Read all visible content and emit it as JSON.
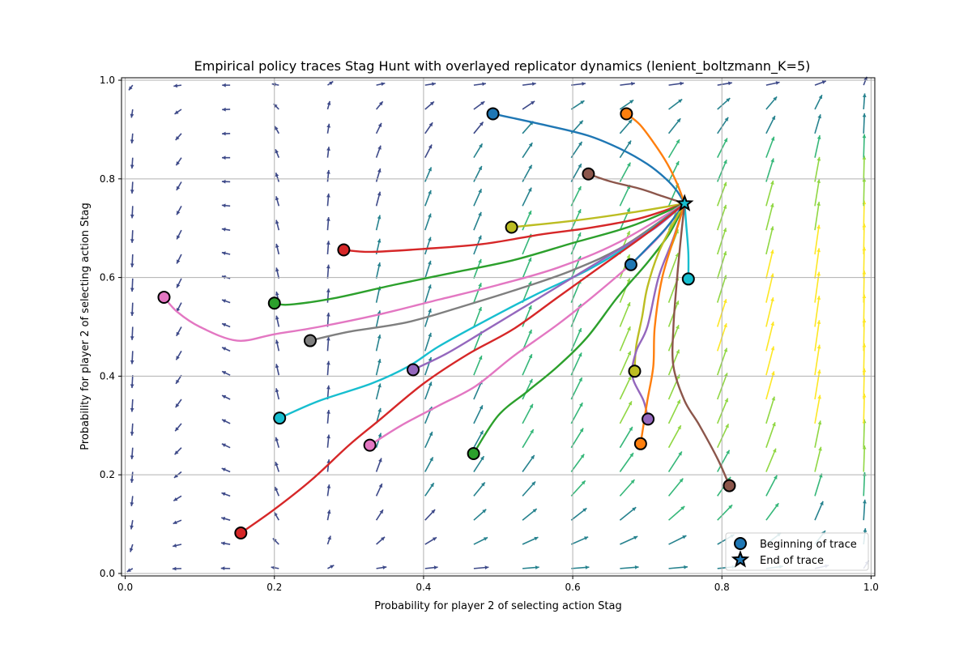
{
  "chart_data": {
    "type": "line",
    "title": "Empirical policy traces Stag Hunt with overlayed replicator dynamics (lenient_boltzmann_K=5)",
    "xlabel": "Probability for player 2 of selecting action Stag",
    "ylabel": "Probability for player 2 of selecting action Stag",
    "xlim": [
      -0.005,
      1.005
    ],
    "ylim": [
      -0.005,
      1.005
    ],
    "xticks": [
      "0.0",
      "0.2",
      "0.4",
      "0.6",
      "0.8",
      "1.0"
    ],
    "yticks": [
      "0.0",
      "0.2",
      "0.4",
      "0.6",
      "0.8",
      "1.0"
    ],
    "grid": true,
    "legend": {
      "placement": "lower-right",
      "entries": [
        {
          "label": "Beginning of trace",
          "marker": "circle"
        },
        {
          "label": "End of trace",
          "marker": "star"
        }
      ]
    },
    "end_point": [
      0.75,
      0.75
    ],
    "field_colors": [
      "#3e4a89",
      "#26828e",
      "#35b779",
      "#90d743",
      "#fde725"
    ],
    "traces": [
      {
        "color": "#1f77b4",
        "points": [
          [
            0.493,
            0.932
          ],
          [
            0.56,
            0.91
          ],
          [
            0.62,
            0.888
          ],
          [
            0.665,
            0.86
          ],
          [
            0.7,
            0.83
          ],
          [
            0.725,
            0.8
          ],
          [
            0.74,
            0.775
          ],
          [
            0.75,
            0.75
          ]
        ]
      },
      {
        "color": "#ff7f0e",
        "points": [
          [
            0.672,
            0.932
          ],
          [
            0.69,
            0.91
          ],
          [
            0.71,
            0.87
          ],
          [
            0.727,
            0.83
          ],
          [
            0.74,
            0.79
          ],
          [
            0.75,
            0.75
          ]
        ]
      },
      {
        "color": "#8c564b",
        "points": [
          [
            0.621,
            0.81
          ],
          [
            0.65,
            0.795
          ],
          [
            0.69,
            0.78
          ],
          [
            0.72,
            0.765
          ],
          [
            0.75,
            0.75
          ]
        ]
      },
      {
        "color": "#bcbd22",
        "points": [
          [
            0.518,
            0.702
          ],
          [
            0.6,
            0.715
          ],
          [
            0.68,
            0.732
          ],
          [
            0.75,
            0.75
          ]
        ]
      },
      {
        "color": "#d62728",
        "points": [
          [
            0.293,
            0.656
          ],
          [
            0.33,
            0.652
          ],
          [
            0.4,
            0.658
          ],
          [
            0.48,
            0.668
          ],
          [
            0.56,
            0.688
          ],
          [
            0.62,
            0.7
          ],
          [
            0.69,
            0.72
          ],
          [
            0.75,
            0.75
          ]
        ]
      },
      {
        "color": "#2ca02c",
        "points": [
          [
            0.2,
            0.548
          ],
          [
            0.22,
            0.545
          ],
          [
            0.28,
            0.558
          ],
          [
            0.36,
            0.585
          ],
          [
            0.44,
            0.61
          ],
          [
            0.52,
            0.635
          ],
          [
            0.6,
            0.67
          ],
          [
            0.68,
            0.705
          ],
          [
            0.75,
            0.75
          ]
        ]
      },
      {
        "color": "#e377c2",
        "points": [
          [
            0.052,
            0.56
          ],
          [
            0.07,
            0.53
          ],
          [
            0.1,
            0.5
          ],
          [
            0.15,
            0.472
          ],
          [
            0.2,
            0.485
          ],
          [
            0.26,
            0.5
          ],
          [
            0.34,
            0.525
          ],
          [
            0.42,
            0.555
          ],
          [
            0.5,
            0.585
          ],
          [
            0.58,
            0.62
          ],
          [
            0.66,
            0.67
          ],
          [
            0.75,
            0.75
          ]
        ]
      },
      {
        "color": "#7f7f7f",
        "points": [
          [
            0.248,
            0.472
          ],
          [
            0.3,
            0.49
          ],
          [
            0.38,
            0.51
          ],
          [
            0.46,
            0.545
          ],
          [
            0.53,
            0.578
          ],
          [
            0.6,
            0.615
          ],
          [
            0.67,
            0.665
          ],
          [
            0.75,
            0.75
          ]
        ]
      },
      {
        "color": "#17becf",
        "points": [
          [
            0.207,
            0.315
          ],
          [
            0.26,
            0.35
          ],
          [
            0.33,
            0.385
          ],
          [
            0.38,
            0.42
          ],
          [
            0.42,
            0.46
          ],
          [
            0.48,
            0.51
          ],
          [
            0.55,
            0.565
          ],
          [
            0.62,
            0.615
          ],
          [
            0.68,
            0.67
          ],
          [
            0.75,
            0.75
          ]
        ]
      },
      {
        "color": "#9467bd",
        "points": [
          [
            0.386,
            0.413
          ],
          [
            0.43,
            0.445
          ],
          [
            0.48,
            0.49
          ],
          [
            0.54,
            0.545
          ],
          [
            0.6,
            0.6
          ],
          [
            0.66,
            0.655
          ],
          [
            0.71,
            0.7
          ],
          [
            0.75,
            0.75
          ]
        ]
      },
      {
        "color": "#d62728",
        "points": [
          [
            0.155,
            0.082
          ],
          [
            0.2,
            0.13
          ],
          [
            0.25,
            0.19
          ],
          [
            0.3,
            0.26
          ],
          [
            0.34,
            0.31
          ],
          [
            0.4,
            0.385
          ],
          [
            0.46,
            0.445
          ],
          [
            0.52,
            0.495
          ],
          [
            0.58,
            0.56
          ],
          [
            0.64,
            0.625
          ],
          [
            0.7,
            0.69
          ],
          [
            0.75,
            0.75
          ]
        ]
      },
      {
        "color": "#e377c2",
        "points": [
          [
            0.328,
            0.26
          ],
          [
            0.37,
            0.3
          ],
          [
            0.42,
            0.34
          ],
          [
            0.47,
            0.38
          ],
          [
            0.52,
            0.44
          ],
          [
            0.58,
            0.505
          ],
          [
            0.63,
            0.565
          ],
          [
            0.68,
            0.63
          ],
          [
            0.72,
            0.69
          ],
          [
            0.75,
            0.75
          ]
        ]
      },
      {
        "color": "#2ca02c",
        "points": [
          [
            0.467,
            0.243
          ],
          [
            0.5,
            0.32
          ],
          [
            0.54,
            0.37
          ],
          [
            0.58,
            0.42
          ],
          [
            0.62,
            0.48
          ],
          [
            0.66,
            0.56
          ],
          [
            0.7,
            0.63
          ],
          [
            0.73,
            0.69
          ],
          [
            0.75,
            0.75
          ]
        ]
      },
      {
        "color": "#1f77b4",
        "points": [
          [
            0.678,
            0.626
          ],
          [
            0.7,
            0.66
          ],
          [
            0.725,
            0.7
          ],
          [
            0.75,
            0.75
          ]
        ]
      },
      {
        "color": "#bcbd22",
        "points": [
          [
            0.683,
            0.41
          ],
          [
            0.685,
            0.46
          ],
          [
            0.693,
            0.52
          ],
          [
            0.7,
            0.58
          ],
          [
            0.715,
            0.65
          ],
          [
            0.735,
            0.71
          ],
          [
            0.75,
            0.75
          ]
        ]
      },
      {
        "color": "#9467bd",
        "points": [
          [
            0.701,
            0.313
          ],
          [
            0.695,
            0.35
          ],
          [
            0.68,
            0.4
          ],
          [
            0.685,
            0.45
          ],
          [
            0.7,
            0.5
          ],
          [
            0.715,
            0.6
          ],
          [
            0.735,
            0.68
          ],
          [
            0.75,
            0.75
          ]
        ]
      },
      {
        "color": "#ff7f0e",
        "points": [
          [
            0.691,
            0.263
          ],
          [
            0.7,
            0.35
          ],
          [
            0.708,
            0.42
          ],
          [
            0.71,
            0.5
          ],
          [
            0.72,
            0.6
          ],
          [
            0.74,
            0.7
          ],
          [
            0.75,
            0.75
          ]
        ]
      },
      {
        "color": "#17becf",
        "points": [
          [
            0.755,
            0.597
          ],
          [
            0.755,
            0.65
          ],
          [
            0.752,
            0.71
          ],
          [
            0.75,
            0.75
          ]
        ]
      },
      {
        "color": "#8c564b",
        "points": [
          [
            0.81,
            0.178
          ],
          [
            0.795,
            0.23
          ],
          [
            0.77,
            0.3
          ],
          [
            0.75,
            0.35
          ],
          [
            0.735,
            0.42
          ],
          [
            0.735,
            0.5
          ],
          [
            0.74,
            0.6
          ],
          [
            0.745,
            0.68
          ],
          [
            0.75,
            0.75
          ]
        ]
      }
    ]
  }
}
